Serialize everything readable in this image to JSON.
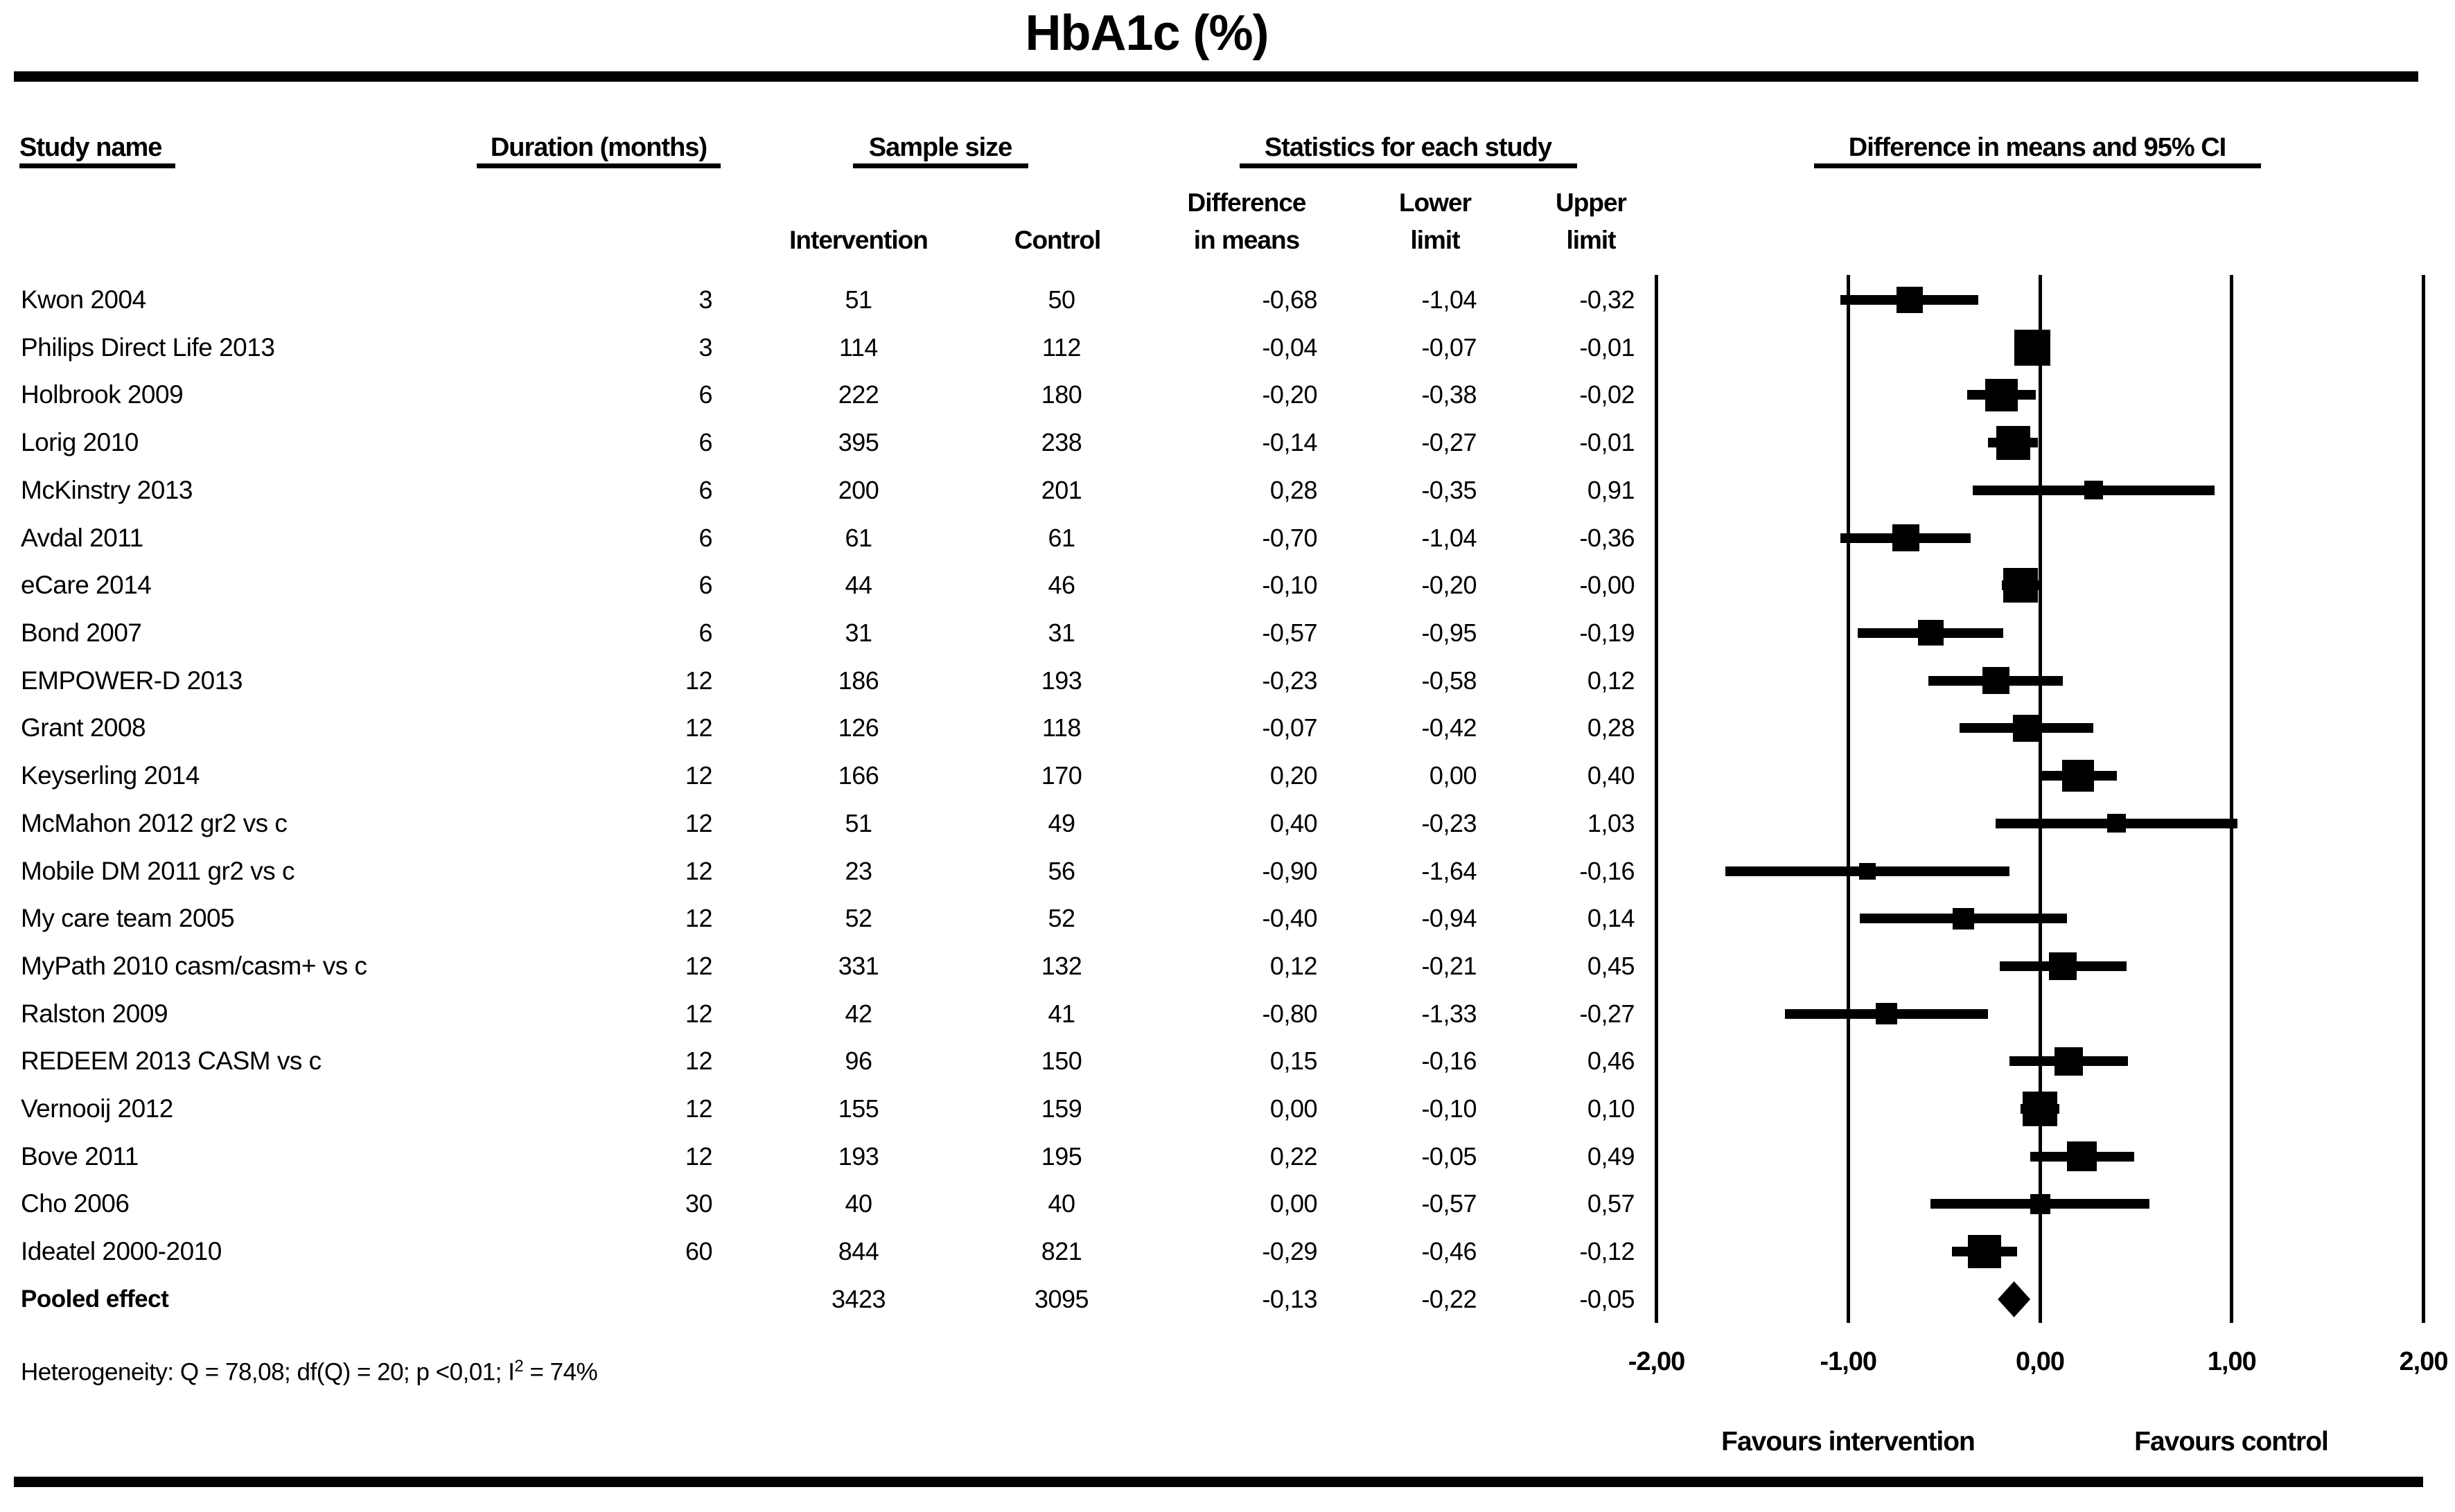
{
  "title": "HbA1c (%)",
  "header": {
    "study": "Study name",
    "duration": "Duration (months)",
    "sample": "Sample size",
    "stats": "Statistics for each study",
    "plot": "Difference in means and 95% CI",
    "sub": {
      "intervention": "Intervention",
      "control": "Control",
      "diff1": "Difference",
      "diff2": "in means",
      "lower1": "Lower",
      "lower2": "limit",
      "upper1": "Upper",
      "upper2": "limit"
    }
  },
  "studies": [
    {
      "name": "Kwon 2004",
      "duration": "3",
      "n_intervention": "51",
      "n_control": "50",
      "difference": "-0,68",
      "lower": "-1,04",
      "upper": "-0,32"
    },
    {
      "name": "Philips Direct Life 2013",
      "duration": "3",
      "n_intervention": "114",
      "n_control": "112",
      "difference": "-0,04",
      "lower": "-0,07",
      "upper": "-0,01"
    },
    {
      "name": "Holbrook 2009",
      "duration": "6",
      "n_intervention": "222",
      "n_control": "180",
      "difference": "-0,20",
      "lower": "-0,38",
      "upper": "-0,02"
    },
    {
      "name": "Lorig 2010",
      "duration": "6",
      "n_intervention": "395",
      "n_control": "238",
      "difference": "-0,14",
      "lower": "-0,27",
      "upper": "-0,01"
    },
    {
      "name": "McKinstry 2013",
      "duration": "6",
      "n_intervention": "200",
      "n_control": "201",
      "difference": "0,28",
      "lower": "-0,35",
      "upper": "0,91"
    },
    {
      "name": "Avdal 2011",
      "duration": "6",
      "n_intervention": "61",
      "n_control": "61",
      "difference": "-0,70",
      "lower": "-1,04",
      "upper": "-0,36"
    },
    {
      "name": "eCare 2014",
      "duration": "6",
      "n_intervention": "44",
      "n_control": "46",
      "difference": "-0,10",
      "lower": "-0,20",
      "upper": "-0,00"
    },
    {
      "name": "Bond 2007",
      "duration": "6",
      "n_intervention": "31",
      "n_control": "31",
      "difference": "-0,57",
      "lower": "-0,95",
      "upper": "-0,19"
    },
    {
      "name": "EMPOWER-D 2013",
      "duration": "12",
      "n_intervention": "186",
      "n_control": "193",
      "difference": "-0,23",
      "lower": "-0,58",
      "upper": "0,12"
    },
    {
      "name": "Grant 2008",
      "duration": "12",
      "n_intervention": "126",
      "n_control": "118",
      "difference": "-0,07",
      "lower": "-0,42",
      "upper": "0,28"
    },
    {
      "name": "Keyserling 2014",
      "duration": "12",
      "n_intervention": "166",
      "n_control": "170",
      "difference": "0,20",
      "lower": "0,00",
      "upper": "0,40"
    },
    {
      "name": "McMahon 2012 gr2 vs c",
      "duration": "12",
      "n_intervention": "51",
      "n_control": "49",
      "difference": "0,40",
      "lower": "-0,23",
      "upper": "1,03"
    },
    {
      "name": "Mobile DM 2011 gr2 vs c",
      "duration": "12",
      "n_intervention": "23",
      "n_control": "56",
      "difference": "-0,90",
      "lower": "-1,64",
      "upper": "-0,16"
    },
    {
      "name": "My care team 2005",
      "duration": "12",
      "n_intervention": "52",
      "n_control": "52",
      "difference": "-0,40",
      "lower": "-0,94",
      "upper": "0,14"
    },
    {
      "name": "MyPath 2010 casm/casm+ vs c",
      "duration": "12",
      "n_intervention": "331",
      "n_control": "132",
      "difference": "0,12",
      "lower": "-0,21",
      "upper": "0,45"
    },
    {
      "name": "Ralston 2009",
      "duration": "12",
      "n_intervention": "42",
      "n_control": "41",
      "difference": "-0,80",
      "lower": "-1,33",
      "upper": "-0,27"
    },
    {
      "name": "REDEEM 2013 CASM vs c",
      "duration": "12",
      "n_intervention": "96",
      "n_control": "150",
      "difference": "0,15",
      "lower": "-0,16",
      "upper": "0,46"
    },
    {
      "name": "Vernooij 2012",
      "duration": "12",
      "n_intervention": "155",
      "n_control": "159",
      "difference": "0,00",
      "lower": "-0,10",
      "upper": "0,10"
    },
    {
      "name": "Bove 2011",
      "duration": "12",
      "n_intervention": "193",
      "n_control": "195",
      "difference": "0,22",
      "lower": "-0,05",
      "upper": "0,49"
    },
    {
      "name": "Cho 2006",
      "duration": "30",
      "n_intervention": "40",
      "n_control": "40",
      "difference": "0,00",
      "lower": "-0,57",
      "upper": "0,57"
    },
    {
      "name": "Ideatel 2000-2010",
      "duration": "60",
      "n_intervention": "844",
      "n_control": "821",
      "difference": "-0,29",
      "lower": "-0,46",
      "upper": "-0,12"
    }
  ],
  "pooled": {
    "name": "Pooled effect",
    "bold": true,
    "duration": "",
    "n_intervention": "3423",
    "n_control": "3095",
    "difference": "-0,13",
    "lower": "-0,22",
    "upper": "-0,05"
  },
  "heterogeneity": {
    "pre": "Heterogeneity: Q = 78,08; df(Q) = 20; p <0,01; I",
    "sup": "2",
    "post": " = 74%"
  },
  "axis": {
    "ticks": [
      {
        "label": "-2,00",
        "value": -2
      },
      {
        "label": "-1,00",
        "value": -1
      },
      {
        "label": "0,00",
        "value": 0
      },
      {
        "label": "1,00",
        "value": 1
      },
      {
        "label": "2,00",
        "value": 2
      }
    ],
    "favours_left": "Favours intervention",
    "favours_right": "Favours control"
  },
  "chart_data": {
    "type": "scatter",
    "subtype": "forest-plot",
    "title": "HbA1c (%)",
    "x_axis": {
      "range": [
        -2,
        2
      ],
      "ticks": [
        -2,
        -1,
        0,
        1,
        2
      ],
      "tick_labels": [
        "-2,00",
        "-1,00",
        "0,00",
        "1,00",
        "2,00"
      ]
    },
    "favours": {
      "left": "Favours intervention",
      "right": "Favours control"
    },
    "studies": [
      {
        "name": "Kwon 2004",
        "duration_months": 3,
        "n_intervention": 51,
        "n_control": 50,
        "mean": -0.68,
        "ci_lower": -1.04,
        "ci_upper": -0.32
      },
      {
        "name": "Philips Direct Life 2013",
        "duration_months": 3,
        "n_intervention": 114,
        "n_control": 112,
        "mean": -0.04,
        "ci_lower": -0.07,
        "ci_upper": -0.01
      },
      {
        "name": "Holbrook 2009",
        "duration_months": 6,
        "n_intervention": 222,
        "n_control": 180,
        "mean": -0.2,
        "ci_lower": -0.38,
        "ci_upper": -0.02
      },
      {
        "name": "Lorig 2010",
        "duration_months": 6,
        "n_intervention": 395,
        "n_control": 238,
        "mean": -0.14,
        "ci_lower": -0.27,
        "ci_upper": -0.01
      },
      {
        "name": "McKinstry 2013",
        "duration_months": 6,
        "n_intervention": 200,
        "n_control": 201,
        "mean": 0.28,
        "ci_lower": -0.35,
        "ci_upper": 0.91
      },
      {
        "name": "Avdal 2011",
        "duration_months": 6,
        "n_intervention": 61,
        "n_control": 61,
        "mean": -0.7,
        "ci_lower": -1.04,
        "ci_upper": -0.36
      },
      {
        "name": "eCare 2014",
        "duration_months": 6,
        "n_intervention": 44,
        "n_control": 46,
        "mean": -0.1,
        "ci_lower": -0.2,
        "ci_upper": -0.004
      },
      {
        "name": "Bond 2007",
        "duration_months": 6,
        "n_intervention": 31,
        "n_control": 31,
        "mean": -0.57,
        "ci_lower": -0.95,
        "ci_upper": -0.19
      },
      {
        "name": "EMPOWER-D 2013",
        "duration_months": 12,
        "n_intervention": 186,
        "n_control": 193,
        "mean": -0.23,
        "ci_lower": -0.58,
        "ci_upper": 0.12
      },
      {
        "name": "Grant 2008",
        "duration_months": 12,
        "n_intervention": 126,
        "n_control": 118,
        "mean": -0.07,
        "ci_lower": -0.42,
        "ci_upper": 0.28
      },
      {
        "name": "Keyserling 2014",
        "duration_months": 12,
        "n_intervention": 166,
        "n_control": 170,
        "mean": 0.2,
        "ci_lower": 0.0,
        "ci_upper": 0.4
      },
      {
        "name": "McMahon 2012 gr2 vs c",
        "duration_months": 12,
        "n_intervention": 51,
        "n_control": 49,
        "mean": 0.4,
        "ci_lower": -0.23,
        "ci_upper": 1.03
      },
      {
        "name": "Mobile DM 2011 gr2 vs c",
        "duration_months": 12,
        "n_intervention": 23,
        "n_control": 56,
        "mean": -0.9,
        "ci_lower": -1.64,
        "ci_upper": -0.16
      },
      {
        "name": "My care team 2005",
        "duration_months": 12,
        "n_intervention": 52,
        "n_control": 52,
        "mean": -0.4,
        "ci_lower": -0.94,
        "ci_upper": 0.14
      },
      {
        "name": "MyPath 2010 casm/casm+ vs c",
        "duration_months": 12,
        "n_intervention": 331,
        "n_control": 132,
        "mean": 0.12,
        "ci_lower": -0.21,
        "ci_upper": 0.45
      },
      {
        "name": "Ralston 2009",
        "duration_months": 12,
        "n_intervention": 42,
        "n_control": 41,
        "mean": -0.8,
        "ci_lower": -1.33,
        "ci_upper": -0.27
      },
      {
        "name": "REDEEM 2013 CASM vs c",
        "duration_months": 12,
        "n_intervention": 96,
        "n_control": 150,
        "mean": 0.15,
        "ci_lower": -0.16,
        "ci_upper": 0.46
      },
      {
        "name": "Vernooij 2012",
        "duration_months": 12,
        "n_intervention": 155,
        "n_control": 159,
        "mean": 0.0,
        "ci_lower": -0.1,
        "ci_upper": 0.1
      },
      {
        "name": "Bove 2011",
        "duration_months": 12,
        "n_intervention": 193,
        "n_control": 195,
        "mean": 0.22,
        "ci_lower": -0.05,
        "ci_upper": 0.49
      },
      {
        "name": "Cho 2006",
        "duration_months": 30,
        "n_intervention": 40,
        "n_control": 40,
        "mean": 0.0,
        "ci_lower": -0.57,
        "ci_upper": 0.57
      },
      {
        "name": "Ideatel 2000-2010",
        "duration_months": 60,
        "n_intervention": 844,
        "n_control": 821,
        "mean": -0.29,
        "ci_lower": -0.46,
        "ci_upper": -0.12
      }
    ],
    "pooled": {
      "name": "Pooled effect",
      "n_intervention": 3423,
      "n_control": 3095,
      "mean": -0.13,
      "ci_lower": -0.22,
      "ci_upper": -0.05
    },
    "heterogeneity": {
      "Q": "78,08",
      "df_Q": 20,
      "p": "<0,01",
      "I2": "74%"
    }
  }
}
